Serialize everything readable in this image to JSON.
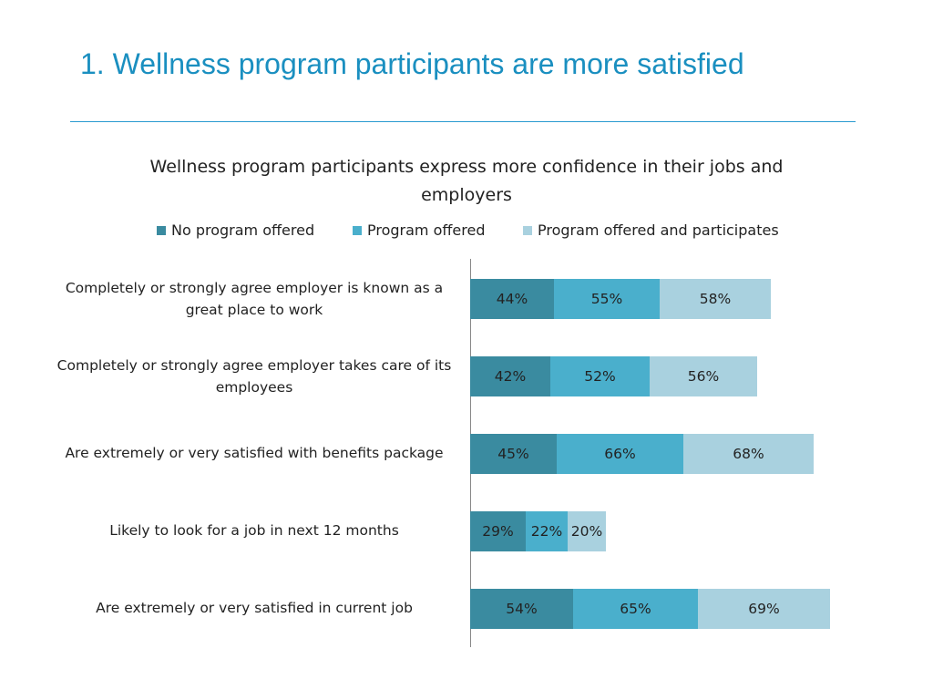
{
  "slide": {
    "title": "1. Wellness program participants are more satisfied"
  },
  "chart_data": {
    "type": "bar",
    "orientation": "horizontal",
    "stacked": true,
    "title": "Wellness program participants express more confidence in their jobs and employers",
    "legend_position": "top",
    "categories": [
      "Completely or strongly agree employer is known as a great place to work",
      "Completely or strongly agree employer takes care of its employees",
      "Are extremely or very satisfied with benefits package",
      "Likely to look for a job in next 12 months",
      "Are extremely or very satisfied in current job"
    ],
    "series": [
      {
        "name": "No program offered",
        "color": "#3a8ba0",
        "values": [
          44,
          42,
          45,
          29,
          54
        ]
      },
      {
        "name": "Program offered",
        "color": "#4aafcc",
        "values": [
          55,
          52,
          66,
          22,
          65
        ]
      },
      {
        "name": "Program offered and participates",
        "color": "#a9d1df",
        "values": [
          58,
          56,
          68,
          20,
          69
        ]
      }
    ],
    "value_suffix": "%",
    "xlabel": "",
    "ylabel": ""
  }
}
